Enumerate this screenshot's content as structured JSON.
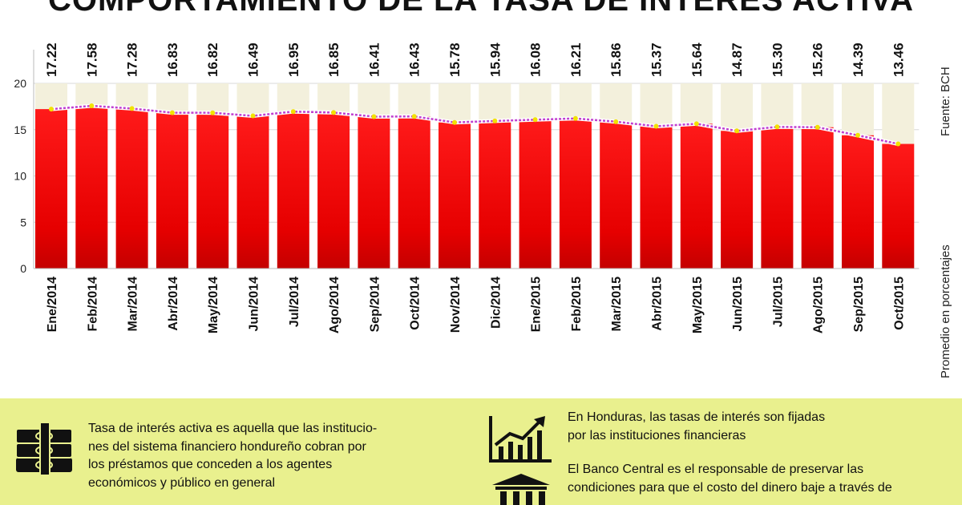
{
  "title": "COMPORTAMIENTO DE LA TASA DE INTERÉS ACTIVA",
  "source": "Fuente: BCH",
  "chart_data": {
    "type": "bar",
    "title": "COMPORTAMIENTO DE LA TASA DE INTERÉS ACTIVA",
    "ylabel": "Promedio en porcentajes",
    "xlabel": "",
    "ylim": [
      0,
      20
    ],
    "yticks": [
      0,
      5,
      10,
      15,
      20
    ],
    "categories": [
      "Ene/2014",
      "Feb/2014",
      "Mar/2014",
      "Abr/2014",
      "May/2014",
      "Jun/2014",
      "Jul/2014",
      "Ago/2014",
      "Sep/2014",
      "Oct/2014",
      "Nov/2014",
      "Dic/2014",
      "Ene/2015",
      "Feb/2015",
      "Mar/2015",
      "Abr/2015",
      "May/2015",
      "Jun/2015",
      "Jul/2015",
      "Ago/2015",
      "Sep/2015",
      "Oct/2015"
    ],
    "values": [
      17.22,
      17.58,
      17.28,
      16.83,
      16.82,
      16.49,
      16.95,
      16.85,
      16.41,
      16.43,
      15.78,
      15.94,
      16.08,
      16.21,
      15.86,
      15.37,
      15.64,
      14.87,
      15.3,
      15.26,
      14.39,
      13.46
    ],
    "value_labels": [
      "17.22",
      "17.58",
      "17.28",
      "16.83",
      "16.82",
      "16.49",
      "16.95",
      "16.85",
      "16.41",
      "16.43",
      "15.78",
      "15.94",
      "16.08",
      "16.21",
      "15.86",
      "15.37",
      "15.64",
      "14.87",
      "15.30",
      "15.26",
      "14.39",
      "13.46"
    ],
    "grid": true,
    "colors": {
      "bar": "#e30000",
      "trend_line": "#c040d0",
      "marker": "#f2e200",
      "label_band": "#f3f0dc"
    }
  },
  "info": {
    "left_text": "Tasa de interés activa es aquella que las institucio-\nnes del sistema financiero hondureño cobran por\nlos préstamos que conceden a los agentes\neconómicos y público en general",
    "right_text_1": "En Honduras, las tasas de interés son fijadas\npor las instituciones financieras",
    "right_text_2": "El Banco Central es el responsable de preservar las\ncondiciones para que el costo del dinero baje a través de",
    "icons": [
      "money-stack-icon",
      "growth-chart-icon",
      "bank-building-icon"
    ],
    "background": "#e9f08e"
  }
}
